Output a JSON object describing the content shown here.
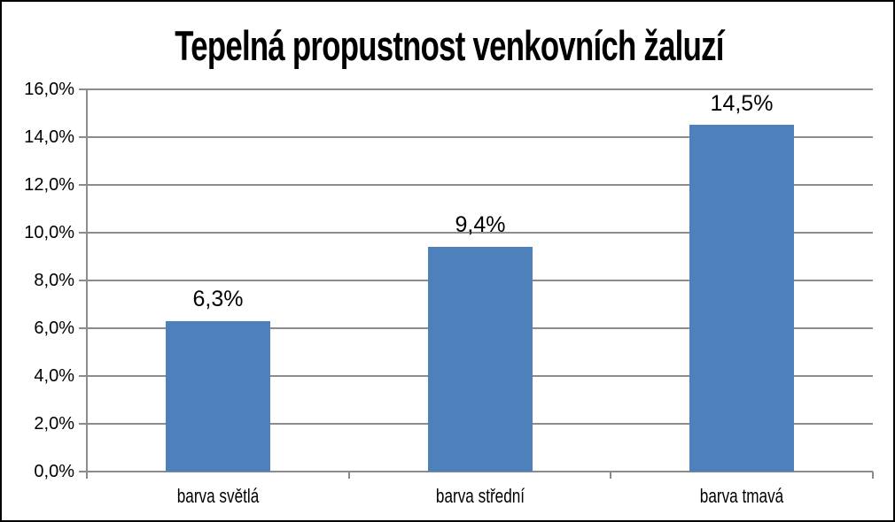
{
  "chart_data": {
    "type": "bar",
    "title": "Tepelná propustnost venkovních žaluzí",
    "categories": [
      "barva světlá",
      "barva střední",
      "barva tmavá"
    ],
    "values": [
      6.3,
      9.4,
      14.5
    ],
    "data_labels": [
      "6,3%",
      "9,4%",
      "14,5%"
    ],
    "xlabel": "",
    "ylabel": "",
    "y_axis": {
      "min": 0,
      "max": 16,
      "step": 2,
      "tick_values": [
        0,
        2,
        4,
        6,
        8,
        10,
        12,
        14,
        16
      ],
      "tick_labels": [
        "0,0%",
        "2,0%",
        "4,0%",
        "6,0%",
        "8,0%",
        "10,0%",
        "12,0%",
        "14,0%",
        "16,0%"
      ]
    },
    "grid": true,
    "legend": "none",
    "colors": {
      "bar": "#4e81bc",
      "gridline": "#8c8c8c",
      "axis": "#8c8c8c",
      "text": "#000000",
      "background": "#ffffff",
      "frame_border": "#000000"
    }
  }
}
